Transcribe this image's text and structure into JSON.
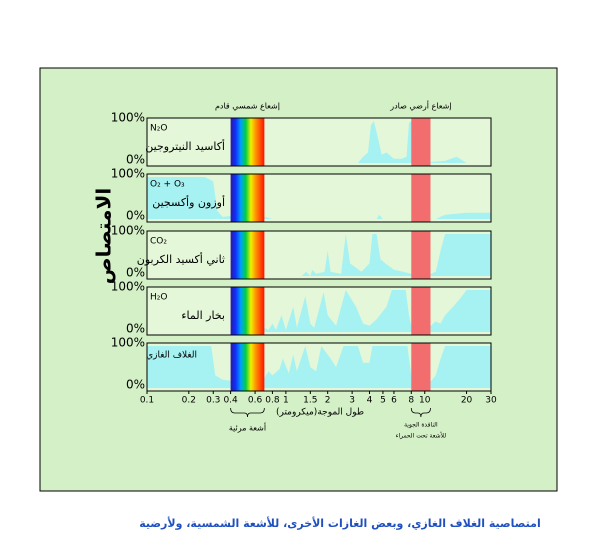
{
  "figure": {
    "caption": "امتصاصية الغلاف الغازي، وبعض الغازات الأخرى، للأشعة الشمسية، ولأرضية",
    "y_axis_label": "الامتصاص",
    "x_axis_label": "طول الموجة(ميكرومتر)",
    "incoming_label": "إشعاع شمسي قادم",
    "outgoing_label": "إشعاع أرضي صادر",
    "visible_label": "أشعة مرئية",
    "window_label": [
      "النافذة الجوية",
      "للأشعة تحت الحمراء"
    ],
    "visible_band": [
      0.4,
      0.7
    ],
    "window_band": [
      8,
      11
    ]
  },
  "chart_data": [
    {
      "type": "area",
      "formula": "N₂O",
      "name": "أكاسيد النيتروجين",
      "color": "#a6f2f2",
      "x": [
        0.1,
        3.3,
        3.6,
        3.9,
        4.1,
        4.3,
        4.6,
        4.9,
        5.3,
        6.0,
        6.8,
        7.4,
        7.7,
        8.0,
        8.4,
        9,
        14,
        17,
        20,
        30
      ],
      "values": [
        0,
        0,
        15,
        25,
        90,
        100,
        60,
        20,
        25,
        10,
        10,
        15,
        95,
        100,
        10,
        0,
        5,
        15,
        0,
        0
      ],
      "xlim": [
        0.1,
        30
      ],
      "log_x": true,
      "ylim": [
        0,
        100
      ],
      "yticks": [
        {
          "value": 100,
          "label": "100%"
        },
        {
          "value": 0,
          "label": "0%"
        }
      ]
    },
    {
      "type": "area",
      "formula": "O₂ + O₃",
      "name": "أوزون وأكسجين",
      "color": "#a6f2f2",
      "x": [
        0.1,
        0.2,
        0.26,
        0.3,
        0.32,
        0.35,
        0.5,
        0.7,
        0.8,
        4.5,
        4.7,
        5,
        9.2,
        9.5,
        9.7,
        10,
        10.5,
        12,
        14,
        20,
        30
      ],
      "values": [
        100,
        100,
        100,
        90,
        20,
        5,
        10,
        5,
        0,
        0,
        10,
        0,
        0,
        90,
        100,
        10,
        0,
        0,
        10,
        15,
        15
      ],
      "xlim": [
        0.1,
        30
      ],
      "log_x": true,
      "ylim": [
        0,
        100
      ],
      "yticks": [
        {
          "value": 100,
          "label": "100%"
        },
        {
          "value": 0,
          "label": "0%"
        }
      ]
    },
    {
      "type": "area",
      "formula": "CO₂",
      "name": "ثاني أكسيد الكربون",
      "color": "#a6f2f2",
      "x": [
        0.1,
        1.3,
        1.4,
        1.5,
        1.55,
        1.65,
        1.9,
        2.0,
        2.1,
        2.5,
        2.7,
        2.9,
        3.5,
        4.0,
        4.2,
        4.5,
        4.8,
        5.2,
        6,
        7,
        8,
        9,
        10,
        11,
        12,
        13,
        14,
        30
      ],
      "values": [
        0,
        0,
        10,
        0,
        15,
        5,
        10,
        60,
        10,
        5,
        100,
        30,
        10,
        30,
        100,
        100,
        40,
        30,
        15,
        10,
        5,
        10,
        15,
        5,
        10,
        60,
        100,
        100
      ],
      "xlim": [
        0.1,
        30
      ],
      "log_x": true,
      "ylim": [
        0,
        100
      ],
      "yticks": [
        {
          "value": 100,
          "label": "100%"
        },
        {
          "value": 0,
          "label": "0%"
        }
      ]
    },
    {
      "type": "area",
      "formula": "H₂O",
      "name": "بخار الماء",
      "color": "#a6f2f2",
      "x": [
        0.1,
        0.65,
        0.7,
        0.75,
        0.8,
        0.85,
        0.93,
        1.0,
        1.13,
        1.2,
        1.38,
        1.5,
        1.6,
        1.87,
        2.0,
        2.3,
        2.7,
        3.2,
        3.6,
        4,
        4.5,
        5.3,
        5.8,
        7.3,
        7.7,
        8,
        9,
        10,
        11,
        12,
        13,
        14,
        16,
        18,
        20,
        30
      ],
      "values": [
        0,
        0,
        10,
        5,
        20,
        5,
        40,
        5,
        60,
        10,
        85,
        20,
        10,
        95,
        40,
        15,
        100,
        60,
        20,
        15,
        30,
        60,
        100,
        100,
        40,
        15,
        5,
        10,
        15,
        25,
        20,
        40,
        60,
        80,
        100,
        100
      ],
      "xlim": [
        0.1,
        30
      ],
      "log_x": true,
      "ylim": [
        0,
        100
      ],
      "yticks": [
        {
          "value": 100,
          "label": "100%"
        },
        {
          "value": 0,
          "label": "0%"
        }
      ]
    },
    {
      "type": "area",
      "name": "الغلاف الغازي",
      "color": "#a6f2f2",
      "x": [
        0.1,
        0.29,
        0.31,
        0.35,
        0.45,
        0.6,
        0.7,
        0.75,
        0.8,
        0.9,
        0.95,
        1.05,
        1.13,
        1.2,
        1.38,
        1.5,
        1.65,
        1.8,
        2.1,
        2.3,
        2.6,
        3.3,
        3.6,
        4.0,
        4.2,
        6.0,
        7.5,
        8,
        9,
        9.6,
        10,
        11,
        12,
        13,
        14,
        30
      ],
      "values": [
        100,
        100,
        30,
        20,
        15,
        20,
        25,
        40,
        30,
        45,
        70,
        35,
        80,
        40,
        100,
        50,
        40,
        100,
        70,
        50,
        100,
        100,
        60,
        60,
        100,
        100,
        100,
        30,
        25,
        80,
        20,
        15,
        30,
        70,
        100,
        100
      ],
      "xlim": [
        0.1,
        30
      ],
      "log_x": true,
      "ylim": [
        0,
        100
      ],
      "yticks": [
        {
          "value": 100,
          "label": "100%"
        },
        {
          "value": 0,
          "label": "0%"
        }
      ],
      "xticks": [
        0.1,
        0.2,
        0.3,
        0.4,
        0.6,
        0.8,
        1,
        1.5,
        2,
        3,
        4,
        5,
        6,
        8,
        10,
        20,
        30
      ]
    }
  ]
}
